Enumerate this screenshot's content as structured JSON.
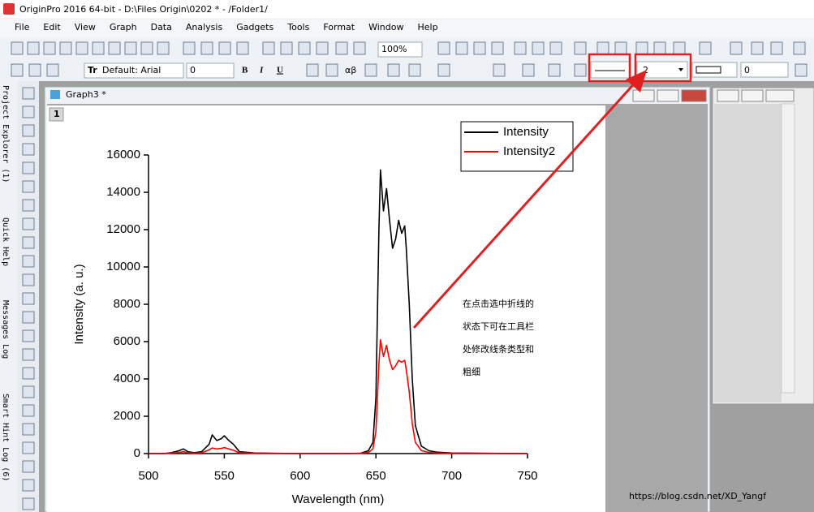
{
  "window": {
    "title": "OriginPro 2016 64-bit - D:\\Files Origin\\0202 * - /Folder1/"
  },
  "menu": [
    "File",
    "Edit",
    "View",
    "Graph",
    "Data",
    "Analysis",
    "Gadgets",
    "Tools",
    "Format",
    "Window",
    "Help"
  ],
  "toolbar": {
    "zoom": "100%",
    "font": "Default: Arial",
    "font_size": "0",
    "bold": "B",
    "italic": "I",
    "underline": "U",
    "greek": "αβ",
    "line_width": "2",
    "pattern_width": "0"
  },
  "side_panels": [
    "Project Explorer (1)",
    "Quick Help",
    "Messages Log",
    "Smart Hint Log (6)"
  ],
  "graph_window": {
    "title": "Graph3 *",
    "layer": "1"
  },
  "annotation": [
    "在点击选中折线的",
    "状态下可在工具栏",
    "处修改线条类型和",
    "粗细"
  ],
  "watermark": "https://blog.csdn.net/XD_Yangf",
  "chart_data": {
    "type": "line",
    "xlabel": "Wavelength (nm)",
    "ylabel": "Intensity (a. u.)",
    "x": [
      500,
      510,
      515,
      520,
      523,
      526,
      530,
      535,
      540,
      542,
      545,
      548,
      550,
      553,
      556,
      560,
      570,
      600,
      630,
      640,
      645,
      648,
      650,
      652,
      653,
      655,
      657,
      659,
      661,
      663,
      665,
      667,
      669,
      670,
      672,
      674,
      676,
      680,
      685,
      690,
      700,
      750
    ],
    "series": [
      {
        "name": "Intensity",
        "color": "#000000",
        "values": [
          0,
          0,
          50,
          150,
          250,
          100,
          50,
          100,
          500,
          1000,
          700,
          800,
          950,
          700,
          500,
          100,
          30,
          0,
          0,
          20,
          150,
          600,
          3000,
          12000,
          15200,
          13000,
          14200,
          12500,
          11000,
          11500,
          12500,
          11800,
          12200,
          11000,
          8000,
          4000,
          1500,
          400,
          150,
          80,
          30,
          0
        ]
      },
      {
        "name": "Intensity2",
        "color": "#ff0000",
        "values": [
          0,
          0,
          20,
          60,
          100,
          40,
          20,
          40,
          200,
          300,
          250,
          280,
          320,
          250,
          180,
          40,
          10,
          0,
          0,
          10,
          60,
          250,
          1200,
          4800,
          6100,
          5200,
          5800,
          5000,
          4500,
          4700,
          5000,
          4900,
          5000,
          4500,
          3300,
          1600,
          600,
          160,
          60,
          30,
          10,
          0
        ]
      }
    ],
    "xlim": [
      500,
      750
    ],
    "ylim": [
      0,
      16000
    ],
    "xticks": [
      500,
      550,
      600,
      650,
      700,
      750
    ],
    "yticks": [
      0,
      2000,
      4000,
      6000,
      8000,
      10000,
      12000,
      14000,
      16000
    ],
    "legend": "top-right"
  }
}
